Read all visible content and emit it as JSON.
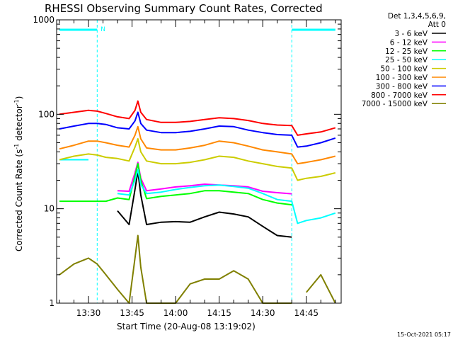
{
  "chart_data": {
    "type": "line",
    "title": "RHESSI Observing Summary Count Rates, Corrected",
    "xlabel": "Start Time (20-Aug-08 13:19:02)",
    "ylabel": "Corrected Count Rate (s⁻¹ detector⁻¹)",
    "ylabel_main": "Corrected Count Rate (s",
    "ylabel_exp1": "-1",
    "ylabel_mid": " detector",
    "ylabel_exp2": "-1",
    "ylabel_end": ")",
    "yscale": "log",
    "ylim": [
      1,
      1000
    ],
    "xlim": [
      "13:19:02",
      "14:57:00"
    ],
    "x_ticks": [
      "13:30",
      "13:45",
      "14:00",
      "14:15",
      "14:30",
      "14:45"
    ],
    "y_ticks": [
      "1",
      "10",
      "100",
      "1000"
    ],
    "legend_header": [
      "Det 1,3,4,5,6,9,",
      "Att 0"
    ],
    "timestamp": "15-Oct-2021 05:17",
    "night_marker": "N",
    "x": [
      "13:20",
      "13:25",
      "13:30",
      "13:33",
      "13:36",
      "13:40",
      "13:44",
      "13:46",
      "13:47",
      "13:48",
      "13:50",
      "13:55",
      "14:00",
      "14:05",
      "14:10",
      "14:15",
      "14:20",
      "14:25",
      "14:30",
      "14:35",
      "14:40",
      "14:42",
      "14:45",
      "14:50",
      "14:55"
    ],
    "series": [
      {
        "name": "3 - 6 keV",
        "color": "#000000",
        "values": [
          null,
          null,
          null,
          null,
          null,
          9.5,
          6.8,
          16,
          25,
          14,
          6.8,
          7.2,
          7.3,
          7.2,
          8.2,
          9.2,
          8.8,
          8.2,
          6.5,
          5.2,
          5.0,
          null,
          null,
          null,
          null
        ]
      },
      {
        "name": "6 - 12 keV",
        "color": "#ff00ff",
        "values": [
          null,
          null,
          null,
          null,
          null,
          15.5,
          15.3,
          24,
          31,
          21,
          15.5,
          16.2,
          17,
          17.5,
          18.2,
          17.8,
          17.5,
          17,
          15.3,
          14.8,
          14.4,
          null,
          null,
          null,
          null
        ]
      },
      {
        "name": "12 - 25 keV",
        "color": "#00ff00",
        "values": [
          12,
          12,
          12,
          12,
          12,
          13,
          12.5,
          22,
          30,
          20,
          12.8,
          13.5,
          14,
          14.5,
          15.5,
          15.5,
          15,
          14.5,
          12.5,
          11.5,
          11,
          null,
          null,
          null,
          null
        ]
      },
      {
        "name": "25 - 50 keV",
        "color": "#00ffff",
        "values": [
          33,
          33,
          33,
          null,
          null,
          14.5,
          14,
          20,
          26,
          18,
          14.5,
          15,
          16,
          16.8,
          17.5,
          17.8,
          17.2,
          16.5,
          14.5,
          12.5,
          12,
          7,
          7.5,
          8,
          9
        ]
      },
      {
        "name": "50 - 100 keV",
        "color": "#cccc00",
        "values": [
          33,
          36,
          38,
          37,
          35,
          34,
          32,
          45,
          55,
          40,
          32,
          30,
          30,
          31,
          33,
          36,
          35,
          32,
          30,
          28,
          27,
          20,
          21,
          22,
          24
        ]
      },
      {
        "name": "100 - 300 keV",
        "color": "#ff8800",
        "values": [
          43,
          47,
          52,
          52,
          50,
          47,
          45,
          60,
          74,
          55,
          44,
          42,
          42,
          44,
          47,
          52,
          50,
          46,
          42,
          40,
          38,
          30,
          31,
          33,
          36
        ]
      },
      {
        "name": "300 - 800 keV",
        "color": "#0000ff",
        "values": [
          70,
          75,
          80,
          80,
          78,
          72,
          70,
          85,
          105,
          80,
          68,
          64,
          64,
          66,
          70,
          75,
          74,
          68,
          64,
          61,
          60,
          45,
          46,
          50,
          56
        ]
      },
      {
        "name": "800 - 7000 keV",
        "color": "#ff0000",
        "values": [
          100,
          105,
          110,
          108,
          102,
          94,
          90,
          110,
          138,
          105,
          88,
          82,
          82,
          84,
          88,
          92,
          90,
          86,
          80,
          77,
          76,
          60,
          62,
          65,
          72
        ]
      },
      {
        "name": "7000 - 15000 keV",
        "color": "#808000",
        "values": [
          2,
          2.6,
          3,
          2.6,
          2,
          1.4,
          1,
          3,
          5.2,
          2.4,
          1,
          1,
          1,
          1.6,
          1.8,
          1.8,
          2.2,
          1.8,
          1,
          1,
          1,
          null,
          1.3,
          2,
          1
        ]
      }
    ]
  }
}
